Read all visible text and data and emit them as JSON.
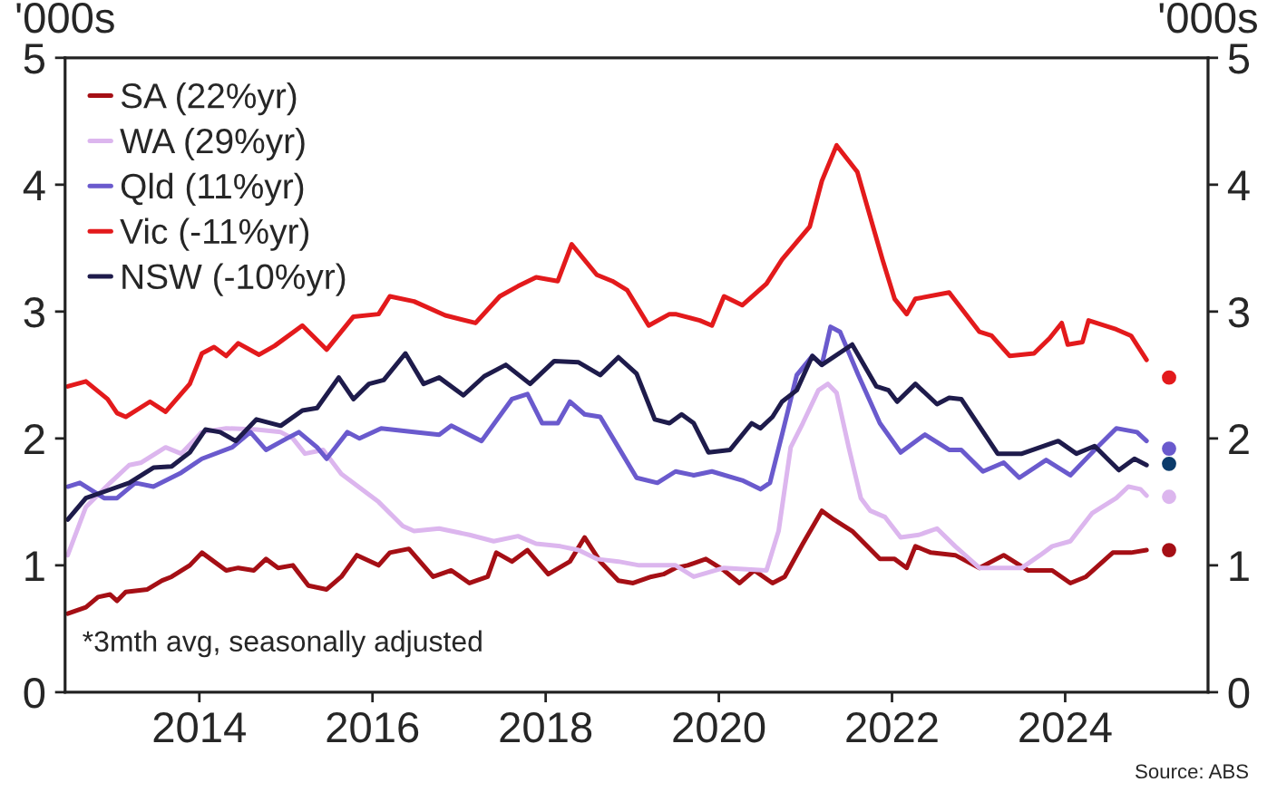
{
  "chart_data": {
    "type": "line",
    "ylabel": "'000s",
    "y2label": "'000s",
    "annotations": [
      "*3mth avg, seasonally adjusted",
      "Source: ABS"
    ],
    "xlim": [
      2012.45,
      2025.65
    ],
    "xticks": [
      {
        "value": 2014,
        "label": "2014"
      },
      {
        "value": 2016,
        "label": "2016"
      },
      {
        "value": 2018,
        "label": "2018"
      },
      {
        "value": 2020,
        "label": "2020"
      },
      {
        "value": 2022,
        "label": "2022"
      },
      {
        "value": 2024,
        "label": "2024"
      }
    ],
    "ylim": [
      0,
      5
    ],
    "yticks": [
      0,
      1,
      2,
      3,
      4,
      5
    ],
    "y2lim": [
      0,
      5
    ],
    "y2ticks": [
      0,
      1,
      2,
      3,
      4,
      5
    ],
    "grid": false,
    "legend": "top left",
    "marker": "none",
    "line_style": "solid",
    "series": [
      {
        "name": "SA (22%yr)",
        "color": "#a50f15",
        "x": [
          2012.48,
          2012.69,
          2012.83,
          2012.97,
          2013.05,
          2013.15,
          2013.4,
          2013.57,
          2013.68,
          2013.89,
          2014.03,
          2014.31,
          2014.45,
          2014.63,
          2014.77,
          2014.91,
          2015.08,
          2015.26,
          2015.47,
          2015.64,
          2015.82,
          2016.07,
          2016.2,
          2016.42,
          2016.7,
          2016.91,
          2017.12,
          2017.33,
          2017.43,
          2017.61,
          2017.79,
          2018.03,
          2018.28,
          2018.45,
          2018.63,
          2018.84,
          2019.01,
          2019.22,
          2019.36,
          2019.5,
          2019.64,
          2019.85,
          2020.06,
          2020.24,
          2020.41,
          2020.62,
          2020.76,
          2020.97,
          2021.19,
          2021.33,
          2021.54,
          2021.86,
          2022.03,
          2022.17,
          2022.27,
          2022.45,
          2022.73,
          2023.01,
          2023.29,
          2023.57,
          2023.85,
          2024.06,
          2024.24,
          2024.55,
          2024.76,
          2024.94
        ],
        "values": [
          0.62,
          0.67,
          0.75,
          0.77,
          0.72,
          0.79,
          0.81,
          0.88,
          0.91,
          1.0,
          1.1,
          0.96,
          0.98,
          0.96,
          1.05,
          0.98,
          1.0,
          0.84,
          0.81,
          0.91,
          1.08,
          1.0,
          1.1,
          1.13,
          0.91,
          0.96,
          0.86,
          0.91,
          1.1,
          1.03,
          1.12,
          0.93,
          1.03,
          1.22,
          1.03,
          0.88,
          0.86,
          0.91,
          0.93,
          0.98,
          1.0,
          1.05,
          0.96,
          0.86,
          0.96,
          0.86,
          0.91,
          1.17,
          1.43,
          1.36,
          1.27,
          1.05,
          1.05,
          0.98,
          1.15,
          1.1,
          1.08,
          0.98,
          1.08,
          0.96,
          0.96,
          0.86,
          0.91,
          1.1,
          1.1,
          1.12
        ]
      },
      {
        "name": "WA (29%yr)",
        "color": "#dcb6ee",
        "x": [
          2012.48,
          2012.69,
          2012.97,
          2013.19,
          2013.33,
          2013.61,
          2013.79,
          2014.03,
          2014.31,
          2014.66,
          2014.94,
          2015.08,
          2015.22,
          2015.43,
          2015.64,
          2016.07,
          2016.35,
          2016.48,
          2016.77,
          2017.12,
          2017.4,
          2017.68,
          2017.89,
          2018.17,
          2018.38,
          2018.59,
          2018.84,
          2019.08,
          2019.4,
          2019.5,
          2019.71,
          2020.06,
          2020.55,
          2020.69,
          2020.83,
          2020.97,
          2021.15,
          2021.26,
          2021.36,
          2021.5,
          2021.64,
          2021.75,
          2021.92,
          2022.1,
          2022.31,
          2022.52,
          2022.73,
          2023.01,
          2023.26,
          2023.5,
          2023.71,
          2023.85,
          2024.06,
          2024.31,
          2024.59,
          2024.73,
          2024.87,
          2024.94
        ],
        "values": [
          1.08,
          1.46,
          1.65,
          1.79,
          1.81,
          1.93,
          1.88,
          2.05,
          2.08,
          2.07,
          2.05,
          2.0,
          1.88,
          1.91,
          1.72,
          1.5,
          1.31,
          1.27,
          1.29,
          1.24,
          1.19,
          1.23,
          1.17,
          1.15,
          1.12,
          1.05,
          1.03,
          1.0,
          1.0,
          1.0,
          0.91,
          0.98,
          0.96,
          1.27,
          1.93,
          2.12,
          2.38,
          2.43,
          2.36,
          1.93,
          1.53,
          1.43,
          1.38,
          1.22,
          1.24,
          1.29,
          1.15,
          0.98,
          0.98,
          0.98,
          1.08,
          1.15,
          1.19,
          1.41,
          1.53,
          1.62,
          1.6,
          1.55
        ]
      },
      {
        "name": "Qld (11%yr)",
        "color": "#6a5acd",
        "x": [
          2012.48,
          2012.62,
          2012.9,
          2013.05,
          2013.26,
          2013.47,
          2013.79,
          2014.03,
          2014.38,
          2014.59,
          2014.77,
          2015.01,
          2015.15,
          2015.36,
          2015.47,
          2015.71,
          2015.85,
          2016.1,
          2016.48,
          2016.77,
          2016.91,
          2017.26,
          2017.61,
          2017.79,
          2017.96,
          2018.14,
          2018.28,
          2018.45,
          2018.63,
          2018.84,
          2019.05,
          2019.29,
          2019.5,
          2019.71,
          2019.92,
          2020.27,
          2020.48,
          2020.59,
          2020.73,
          2020.9,
          2021.08,
          2021.19,
          2021.29,
          2021.4,
          2021.61,
          2021.86,
          2022.1,
          2022.38,
          2022.66,
          2022.8,
          2023.05,
          2023.29,
          2023.47,
          2023.78,
          2024.06,
          2024.34,
          2024.59,
          2024.83,
          2024.94
        ],
        "values": [
          1.62,
          1.65,
          1.53,
          1.53,
          1.65,
          1.62,
          1.73,
          1.84,
          1.93,
          2.05,
          1.91,
          2.0,
          2.05,
          1.93,
          1.84,
          2.05,
          2.0,
          2.08,
          2.05,
          2.03,
          2.1,
          1.98,
          2.31,
          2.35,
          2.12,
          2.12,
          2.29,
          2.19,
          2.17,
          1.93,
          1.69,
          1.65,
          1.74,
          1.71,
          1.74,
          1.67,
          1.6,
          1.65,
          2.03,
          2.5,
          2.65,
          2.58,
          2.88,
          2.84,
          2.5,
          2.12,
          1.89,
          2.03,
          1.91,
          1.91,
          1.74,
          1.81,
          1.69,
          1.83,
          1.71,
          1.91,
          2.08,
          2.05,
          1.98
        ]
      },
      {
        "name": "Vic (-11%yr)",
        "color": "#e31a1c",
        "x": [
          2012.48,
          2012.69,
          2012.94,
          2013.05,
          2013.15,
          2013.43,
          2013.61,
          2013.89,
          2014.03,
          2014.17,
          2014.31,
          2014.45,
          2014.69,
          2014.87,
          2015.19,
          2015.47,
          2015.78,
          2016.07,
          2016.2,
          2016.48,
          2016.84,
          2017.19,
          2017.47,
          2017.68,
          2017.89,
          2018.14,
          2018.3,
          2018.59,
          2018.77,
          2018.94,
          2019.19,
          2019.43,
          2019.5,
          2019.78,
          2019.92,
          2020.06,
          2020.27,
          2020.55,
          2020.73,
          2021.05,
          2021.19,
          2021.36,
          2021.6,
          2021.89,
          2022.03,
          2022.17,
          2022.27,
          2022.66,
          2023.01,
          2023.15,
          2023.36,
          2023.64,
          2023.82,
          2023.96,
          2024.03,
          2024.2,
          2024.27,
          2024.59,
          2024.76,
          2024.94
        ],
        "values": [
          2.41,
          2.45,
          2.31,
          2.2,
          2.17,
          2.29,
          2.21,
          2.43,
          2.67,
          2.72,
          2.65,
          2.75,
          2.66,
          2.73,
          2.89,
          2.7,
          2.96,
          2.98,
          3.12,
          3.08,
          2.97,
          2.91,
          3.12,
          3.2,
          3.27,
          3.24,
          3.53,
          3.29,
          3.24,
          3.17,
          2.89,
          2.98,
          2.98,
          2.93,
          2.89,
          3.12,
          3.05,
          3.22,
          3.41,
          3.67,
          4.03,
          4.31,
          4.1,
          3.41,
          3.1,
          2.98,
          3.1,
          3.15,
          2.84,
          2.81,
          2.65,
          2.67,
          2.79,
          2.91,
          2.74,
          2.76,
          2.93,
          2.86,
          2.81,
          2.62
        ]
      },
      {
        "name": "NSW (-10%yr)",
        "color": "#1e1b4b",
        "x": [
          2012.48,
          2012.69,
          2012.94,
          2013.19,
          2013.47,
          2013.68,
          2013.89,
          2014.07,
          2014.24,
          2014.42,
          2014.66,
          2014.94,
          2015.19,
          2015.36,
          2015.61,
          2015.78,
          2015.96,
          2016.13,
          2016.38,
          2016.59,
          2016.77,
          2017.05,
          2017.29,
          2017.54,
          2017.82,
          2018.1,
          2018.38,
          2018.63,
          2018.84,
          2019.05,
          2019.26,
          2019.43,
          2019.57,
          2019.71,
          2019.88,
          2020.13,
          2020.38,
          2020.48,
          2020.62,
          2020.73,
          2020.9,
          2021.08,
          2021.19,
          2021.54,
          2021.82,
          2021.96,
          2022.06,
          2022.27,
          2022.52,
          2022.66,
          2022.8,
          2023.22,
          2023.5,
          2023.92,
          2024.13,
          2024.34,
          2024.62,
          2024.8,
          2024.94
        ],
        "values": [
          1.36,
          1.53,
          1.59,
          1.65,
          1.77,
          1.78,
          1.89,
          2.07,
          2.05,
          1.98,
          2.15,
          2.1,
          2.22,
          2.24,
          2.48,
          2.31,
          2.43,
          2.46,
          2.67,
          2.43,
          2.48,
          2.34,
          2.49,
          2.58,
          2.43,
          2.61,
          2.6,
          2.5,
          2.64,
          2.51,
          2.15,
          2.12,
          2.19,
          2.12,
          1.89,
          1.91,
          2.12,
          2.08,
          2.17,
          2.29,
          2.38,
          2.65,
          2.58,
          2.74,
          2.41,
          2.38,
          2.29,
          2.43,
          2.27,
          2.32,
          2.31,
          1.88,
          1.88,
          1.98,
          1.88,
          1.94,
          1.75,
          1.84,
          1.79
        ]
      },
      {
        "type": "scatter",
        "marker": "circle",
        "color": "#e31a1c",
        "x": [
          2025.2
        ],
        "values": [
          2.48
        ]
      },
      {
        "type": "scatter",
        "marker": "circle",
        "color": "#6a5acd",
        "x": [
          2025.2
        ],
        "values": [
          1.92
        ]
      },
      {
        "type": "scatter",
        "marker": "circle",
        "color": "#0b3b6b",
        "x": [
          2025.2
        ],
        "values": [
          1.8
        ]
      },
      {
        "type": "scatter",
        "marker": "circle",
        "color": "#dcb6ee",
        "x": [
          2025.2
        ],
        "values": [
          1.54
        ]
      },
      {
        "type": "scatter",
        "marker": "circle",
        "color": "#a50f15",
        "x": [
          2025.2
        ],
        "values": [
          1.12
        ]
      }
    ]
  }
}
